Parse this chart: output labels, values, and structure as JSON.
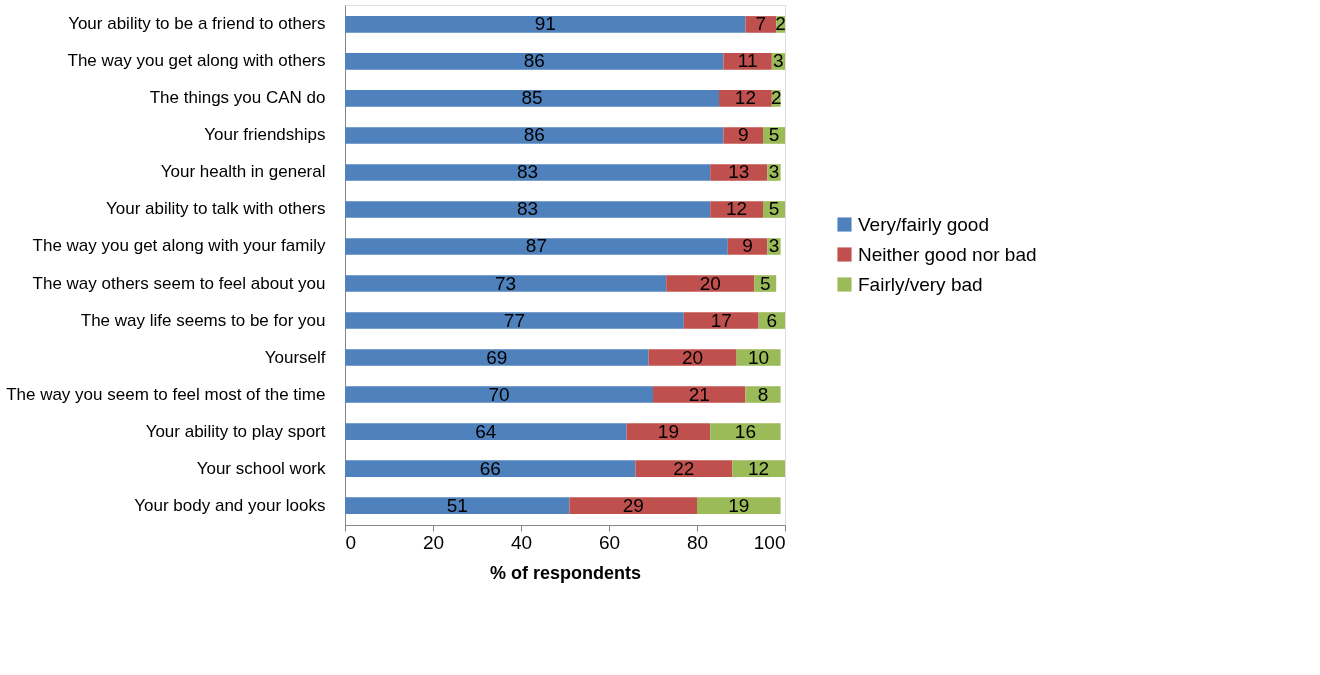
{
  "chart_data": {
    "type": "bar",
    "orientation": "horizontal",
    "stacked": true,
    "xlabel": "% of respondents",
    "categories": [
      "Your ability to be a friend to others",
      "The way you get along with others",
      "The things you CAN do",
      "Your friendships",
      "Your health in general",
      "Your ability to talk with others",
      "The way you get along with your family",
      "The way others seem to feel about you",
      "The way life seems to be for you",
      "Yourself",
      "The way you seem to feel most of the time",
      "Your ability to play sport",
      "Your school work",
      "Your body and your looks"
    ],
    "series": [
      {
        "name": "Very/fairly good",
        "color": "#4f81bd",
        "values": [
          91,
          86,
          85,
          86,
          83,
          83,
          87,
          73,
          77,
          69,
          70,
          64,
          66,
          51
        ]
      },
      {
        "name": "Neither good nor bad",
        "color": "#c0504d",
        "values": [
          7,
          11,
          12,
          9,
          13,
          12,
          9,
          20,
          17,
          20,
          21,
          19,
          22,
          29
        ]
      },
      {
        "name": "Fairly/very bad",
        "color": "#9bbb59",
        "values": [
          2,
          3,
          2,
          5,
          3,
          5,
          3,
          5,
          6,
          10,
          8,
          16,
          12,
          19
        ]
      }
    ],
    "xlim": [
      0,
      100
    ],
    "xticks": [
      0,
      20,
      40,
      60,
      80,
      100
    ],
    "data_labels": true,
    "grid": false,
    "legend": "right"
  }
}
